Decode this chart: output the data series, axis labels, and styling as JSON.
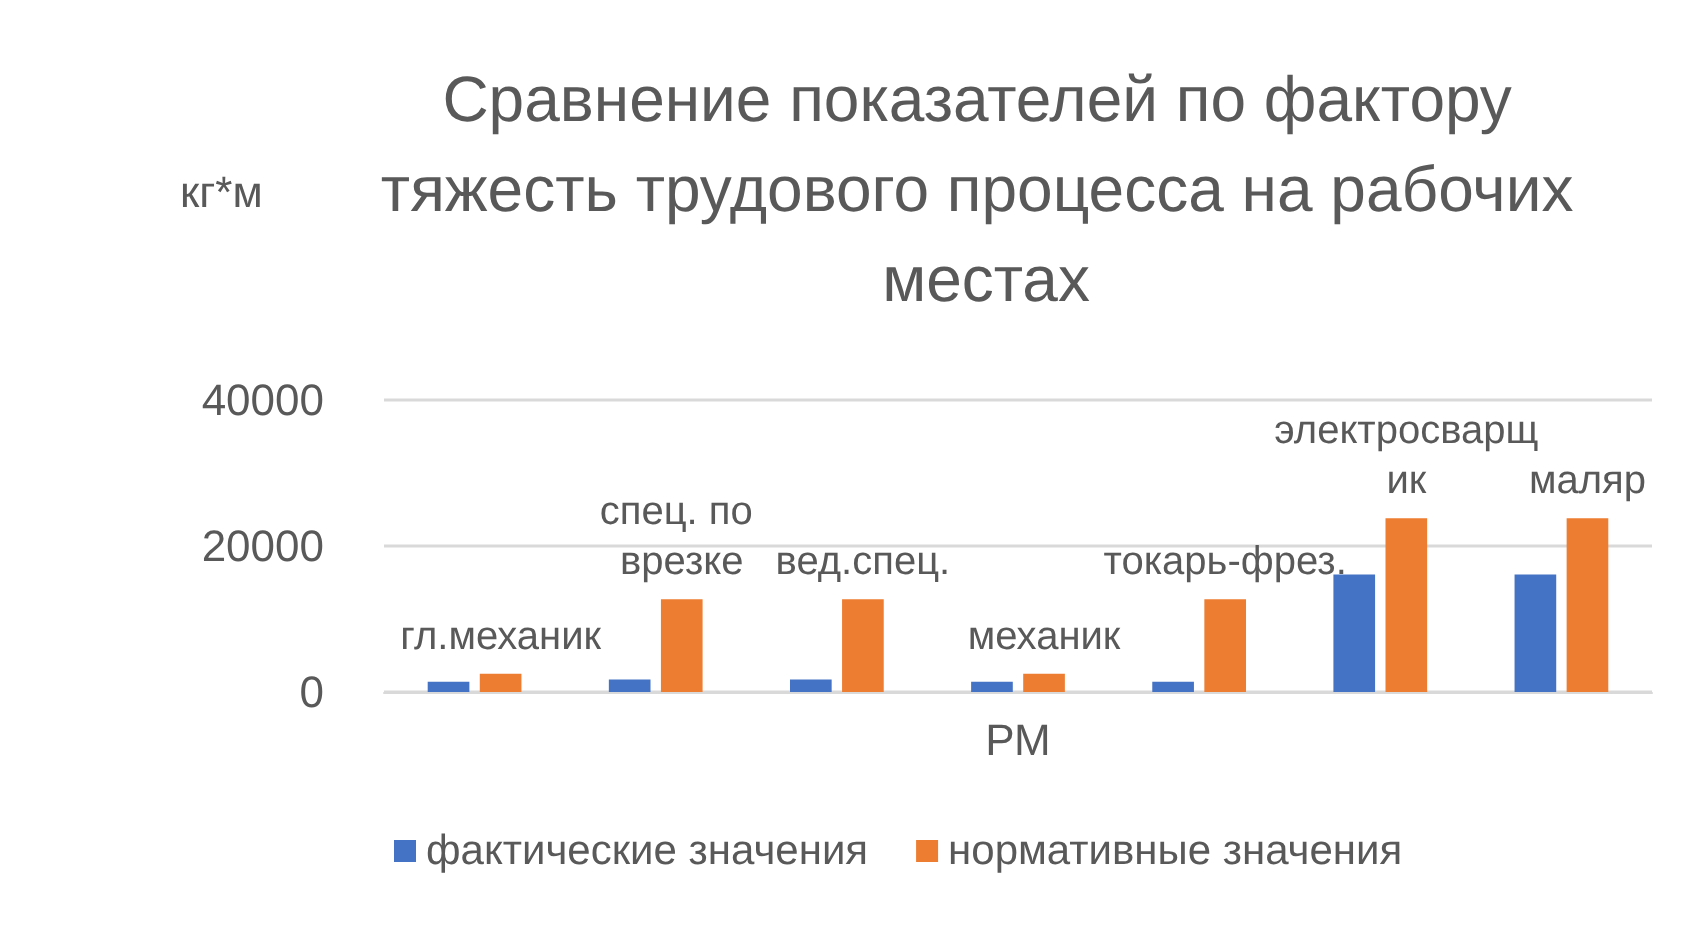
{
  "chart_data": {
    "type": "bar",
    "title": "Сравнение показателей по фактору тяжесть трудового процесса на рабочих местах",
    "xlabel": "РМ",
    "ylabel": "кг*м",
    "categories": [
      null,
      null,
      null,
      null,
      null,
      null,
      null
    ],
    "series": [
      {
        "name": "фактические значения",
        "color": "#4472c4",
        "values": [
          1400,
          1700,
          1700,
          1400,
          1400,
          16100,
          16100
        ]
      },
      {
        "name": "нормативные значения",
        "color": "#ed7d31",
        "values": [
          2500,
          12700,
          12700,
          2500,
          12700,
          23800,
          23800
        ],
        "value_labels": [
          "гл.механик",
          "спец. по врезке",
          "вед.спец.",
          "механик",
          "токарь-фрез.",
          "электросварщик",
          "маляр"
        ]
      }
    ],
    "ylim": [
      0,
      40000
    ],
    "yticks": [
      0,
      20000,
      40000
    ],
    "grid": "y",
    "legend": "bottom",
    "tick_labels": "y"
  }
}
